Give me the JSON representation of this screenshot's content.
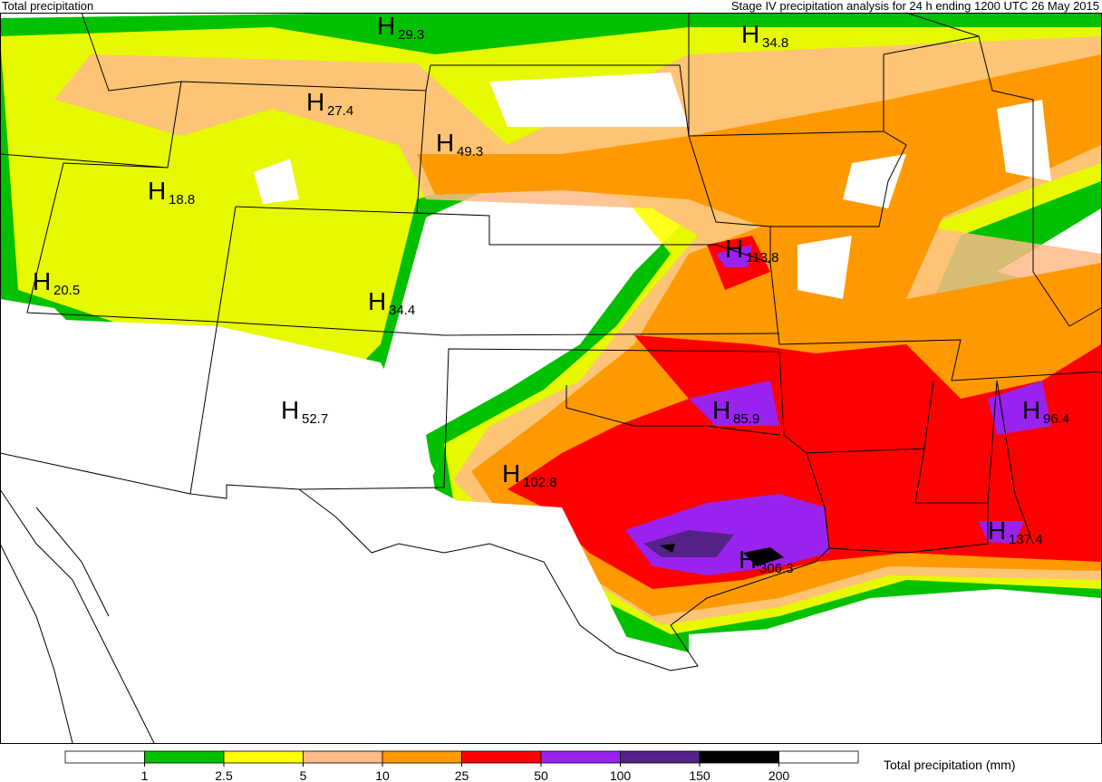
{
  "header": {
    "left": "Total precipitation",
    "right": "Stage IV precipitation analysis for 24 h ending 1200 UTC 26 May 2015"
  },
  "maxima_marker": "H",
  "maxima": [
    29.3,
    34.8,
    27.4,
    49.3,
    18.8,
    20.5,
    34.4,
    113.8,
    52.7,
    85.9,
    96.4,
    102.8,
    306.3,
    137.4
  ],
  "legend": {
    "title": "Total precipitation (mm)",
    "colors": [
      "#ffffff",
      "#00c000",
      "#ffff00",
      "#ffbb88",
      "#ff9900",
      "#ff0000",
      "#9922ee",
      "#552288",
      "#000000",
      "#ffffff"
    ],
    "ticks": [
      1,
      2.5,
      5,
      10,
      25,
      50,
      100,
      150,
      200
    ]
  }
}
